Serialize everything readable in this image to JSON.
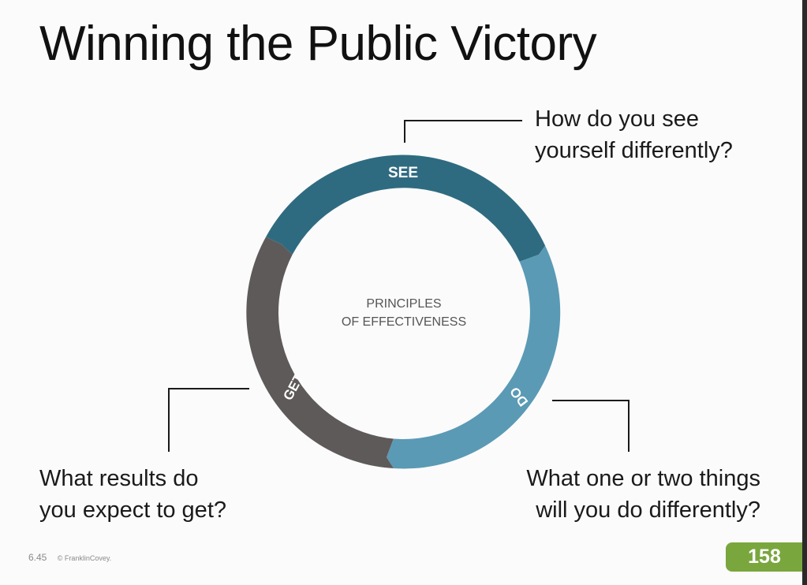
{
  "slide": {
    "title": "Winning the Public Victory",
    "page_number": "158",
    "footer_code": "6.45",
    "footer_copyright": "© FranklinCovey."
  },
  "cycle": {
    "center_line1": "PRINCIPLES",
    "center_line2": "OF EFFECTIVENESS",
    "segments": [
      {
        "label": "SEE",
        "color": "#2f6b80"
      },
      {
        "label": "DO",
        "color": "#5a9ab5"
      },
      {
        "label": "GET",
        "color": "#5e5a59"
      }
    ]
  },
  "questions": {
    "see": [
      "How do you see",
      "yourself differently?"
    ],
    "do": [
      "What one or two things",
      "will you do differently?"
    ],
    "get": [
      "What results do",
      "you expect to get?"
    ]
  },
  "colors": {
    "accent_badge": "#7aa63e",
    "see": "#2f6b80",
    "do": "#5a9ab5",
    "get": "#5e5a59"
  }
}
